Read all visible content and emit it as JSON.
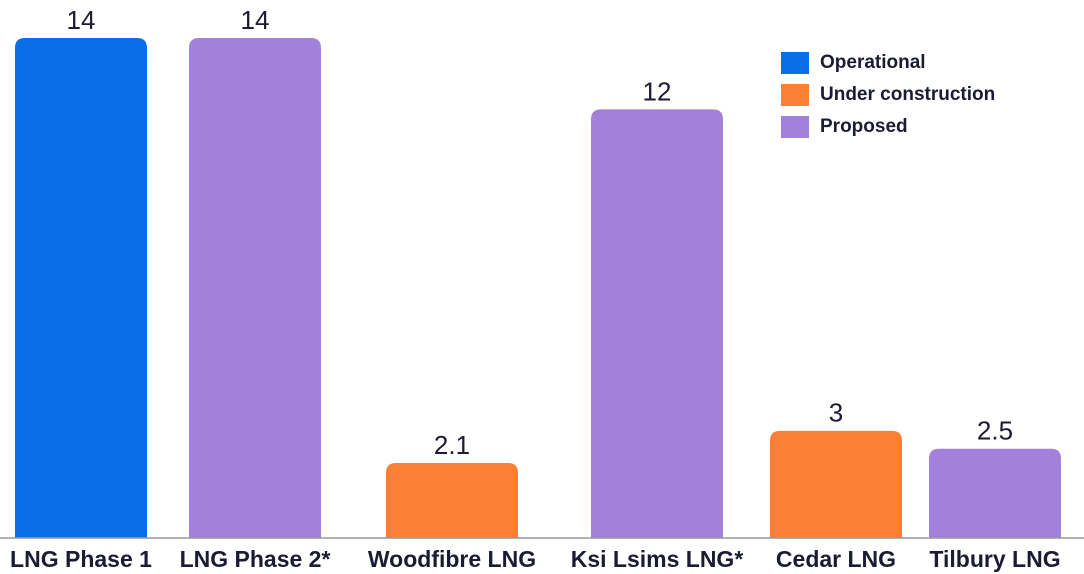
{
  "chart_data": {
    "type": "bar",
    "categories": [
      "LNG Phase 1",
      "LNG Phase 2*",
      "Woodfibre LNG",
      "Ksi Lsims LNG*",
      "Cedar LNG",
      "Tilbury LNG"
    ],
    "series": [
      {
        "name": "Operational",
        "color": "#0a6ee8",
        "values": [
          14,
          null,
          null,
          null,
          null,
          null
        ]
      },
      {
        "name": "Under construction",
        "color": "#fd7f33",
        "values": [
          null,
          null,
          2.1,
          null,
          3,
          null
        ]
      },
      {
        "name": "Proposed",
        "color": "#a281db",
        "values": [
          null,
          14,
          null,
          12,
          null,
          2.5
        ]
      }
    ],
    "legend": "top-right"
  }
}
